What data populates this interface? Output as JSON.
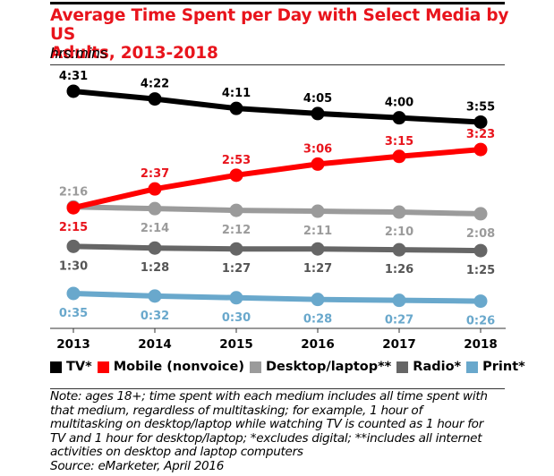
{
  "header": {
    "title_line1": "Average Time Spent per Day with Select Media by US",
    "title_line2": "Adults, 2013-2018",
    "subtitle": "hrs:mins"
  },
  "chart_data": {
    "type": "line",
    "title": "Average Time Spent per Day with Select Media by US Adults, 2013-2018",
    "subtitle": "hrs:mins",
    "xlabel": "",
    "ylabel": "hrs:mins",
    "categories": [
      "2013",
      "2014",
      "2015",
      "2016",
      "2017",
      "2018"
    ],
    "ylim_minutes": [
      0,
      280
    ],
    "grid": false,
    "legend_position": "bottom",
    "series": [
      {
        "name": "TV*",
        "color": "#000000",
        "label_color": "#000000",
        "label_pos": "above",
        "values_minutes": [
          271,
          262,
          251,
          245,
          240,
          235
        ],
        "labels": [
          "4:31",
          "4:22",
          "4:11",
          "4:05",
          "4:00",
          "3:55"
        ]
      },
      {
        "name": "Mobile (nonvoice)",
        "color": "#ff0000",
        "label_color": "#e8141c",
        "label_pos": "above_except_first_below",
        "values_minutes": [
          135,
          157,
          173,
          186,
          195,
          203
        ],
        "labels": [
          "2:15",
          "2:37",
          "2:53",
          "3:06",
          "3:15",
          "3:23"
        ]
      },
      {
        "name": "Desktop/laptop**",
        "color": "#9b9b9b",
        "label_color": "#9b9b9b",
        "label_pos": "below_except_first_above",
        "values_minutes": [
          136,
          134,
          132,
          131,
          130,
          128
        ],
        "labels": [
          "2:16",
          "2:14",
          "2:12",
          "2:11",
          "2:10",
          "2:08"
        ]
      },
      {
        "name": "Radio*",
        "color": "#666666",
        "label_color": "#555555",
        "label_pos": "below",
        "values_minutes": [
          90,
          88,
          87,
          87,
          86,
          85
        ],
        "labels": [
          "1:30",
          "1:28",
          "1:27",
          "1:27",
          "1:26",
          "1:25"
        ]
      },
      {
        "name": "Print*",
        "color": "#69a8cc",
        "label_color": "#69a8cc",
        "label_pos": "below",
        "values_minutes": [
          35,
          32,
          30,
          28,
          27,
          26
        ],
        "labels": [
          "0:35",
          "0:32",
          "0:30",
          "0:28",
          "0:27",
          "0:26"
        ]
      }
    ]
  },
  "legend": [
    {
      "label": "TV*",
      "color": "#000000"
    },
    {
      "label": "Mobile (nonvoice)",
      "color": "#ff0000"
    },
    {
      "label": "Desktop/laptop**",
      "color": "#9b9b9b"
    },
    {
      "label": "Radio*",
      "color": "#666666"
    },
    {
      "label": "Print*",
      "color": "#69a8cc"
    }
  ],
  "footer": {
    "note_lines": [
      "Note: ages 18+; time spent with each medium includes all time spent with",
      "that medium, regardless of multitasking; for example, 1 hour of",
      "multitasking on desktop/laptop while watching TV is counted as 1 hour for",
      "TV and 1 hour for desktop/laptop; *excludes digital; **includes all internet",
      "activities on desktop and laptop computers"
    ],
    "source": "Source: eMarketer, April 2016"
  }
}
